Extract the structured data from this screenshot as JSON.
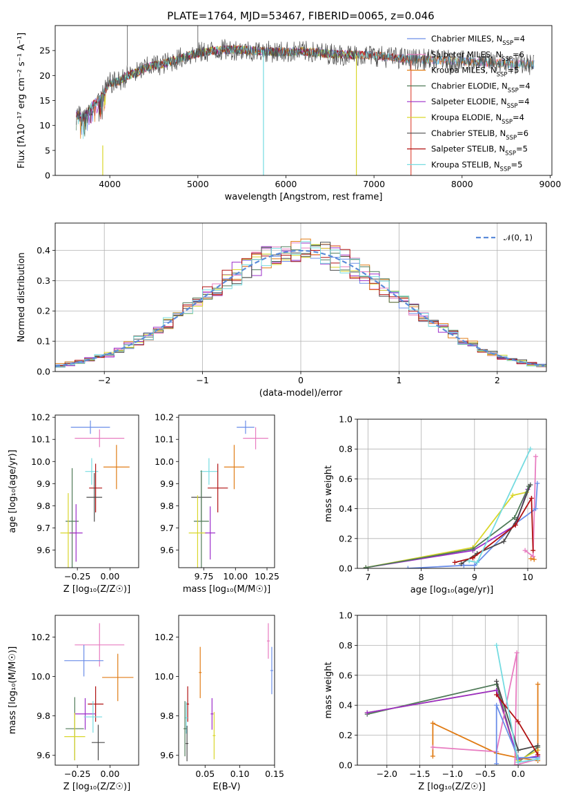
{
  "figure_title": "PLATE=1764, MJD=53467, FIBERID=0065, z=0.046",
  "colors": {
    "Chabrier MILES": "#6a8de8",
    "Salpeter MILES": "#e87bc0",
    "Kroupa MILES": "#e07b14",
    "Chabrier ELODIE": "#4f7a58",
    "Salpeter ELODIE": "#9b2cc9",
    "Kroupa ELODIE": "#d9d629",
    "Chabrier STELIB": "#4a4a4a",
    "Salpeter STELIB": "#b01010",
    "Kroupa STELIB": "#74dbe0"
  },
  "legend": [
    {
      "label": "Chabrier MILES, N",
      "sub": "SSP",
      "value": "=4"
    },
    {
      "label": "Salpeter MILES, N",
      "sub": "SSP",
      "value": "=6"
    },
    {
      "label": "Kroupa MILES, N",
      "sub": "SSP",
      "value": "=5"
    },
    {
      "label": "Chabrier ELODIE, N",
      "sub": "SSP",
      "value": "=4"
    },
    {
      "label": "Salpeter ELODIE, N",
      "sub": "SSP",
      "value": "=4"
    },
    {
      "label": "Kroupa ELODIE, N",
      "sub": "SSP",
      "value": "=4"
    },
    {
      "label": "Chabrier STELIB, N",
      "sub": "SSP",
      "value": "=6"
    },
    {
      "label": "Salpeter STELIB, N",
      "sub": "SSP",
      "value": "=5"
    },
    {
      "label": "Kroupa STELIB, N",
      "sub": "SSP",
      "value": "=5"
    }
  ],
  "chart_data": [
    {
      "id": "spectrum",
      "type": "line",
      "xlabel": "wavelength [Angstrom, rest frame]",
      "ylabel": "Flux [fλ10⁻¹⁷ erg cm⁻² s⁻¹ A⁻¹]",
      "xlim": [
        3380,
        9020
      ],
      "ylim": [
        0,
        30
      ],
      "xticks": [
        "4000",
        "5000",
        "6000",
        "7000",
        "8000",
        "9000"
      ],
      "yticks": [
        "0",
        "5",
        "10",
        "15",
        "20",
        "25"
      ],
      "continuum": {
        "x": [
          3600,
          3700,
          3800,
          3900,
          4000,
          4100,
          4200,
          4300,
          4400,
          4500,
          4600,
          4700,
          4800,
          4900,
          5000,
          5200,
          5400,
          5600,
          5800,
          6000,
          6200,
          6400,
          6600,
          6800,
          7000,
          7200,
          7400,
          7600,
          7800,
          8000,
          8200,
          8400,
          8600,
          8800,
          9000
        ],
        "y": [
          12.5,
          11.5,
          14.0,
          15.5,
          18.5,
          18.8,
          20.0,
          20.5,
          21.5,
          22.0,
          22.3,
          22.8,
          23.5,
          24.0,
          24.5,
          25.0,
          25.2,
          25.0,
          24.8,
          24.7,
          24.8,
          24.5,
          24.2,
          24.1,
          24.0,
          23.6,
          23.3,
          23.2,
          23.0,
          22.8,
          22.7,
          22.5,
          22.3,
          22.2,
          22.0
        ]
      },
      "annotations": [
        "legend, upper right"
      ]
    },
    {
      "id": "residuals",
      "type": "area",
      "xlabel": "(data-model)/error",
      "ylabel": "Normed distribution",
      "xlim": [
        -2.5,
        2.5
      ],
      "ylim": [
        0,
        0.49
      ],
      "xticks": [
        "−2",
        "−1",
        "0",
        "1",
        "2"
      ],
      "yticks": [
        "0.0",
        "0.1",
        "0.2",
        "0.3",
        "0.4"
      ],
      "grid": true,
      "legend_placement": "upper right",
      "legend_label": "𝒩(0, 1)",
      "bin_width": 0.1
    },
    {
      "id": "age_vs_Z",
      "type": "scatter",
      "xlabel": "Z [log₁₀(Z/Z☉)]",
      "ylabel": "age  [log₁₀(age/yr)]",
      "xlim": [
        -0.42,
        0.22
      ],
      "ylim": [
        9.52,
        10.21
      ],
      "xticks": [
        "−0.25",
        "0.00"
      ],
      "yticks": [
        "9.6",
        "9.7",
        "9.8",
        "9.9",
        "10.0",
        "10.1",
        "10.2"
      ],
      "points": [
        {
          "s": "Chabrier MILES",
          "x": -0.15,
          "xerr": 0.15,
          "y": 10.155,
          "yerr": 0.03
        },
        {
          "s": "Salpeter MILES",
          "x": -0.08,
          "xerr": 0.19,
          "y": 10.105,
          "yerr": 0.04
        },
        {
          "s": "Kroupa MILES",
          "x": 0.05,
          "xerr": 0.1,
          "y": 9.975,
          "yerr": 0.1
        },
        {
          "s": "Kroupa STELIB",
          "x": -0.14,
          "xerr": 0.05,
          "y": 9.955,
          "yerr": 0.06
        },
        {
          "s": "Salpeter STELIB",
          "x": -0.11,
          "xerr": 0.05,
          "y": 9.88,
          "yerr": 0.11
        },
        {
          "s": "Chabrier STELIB",
          "x": -0.12,
          "xerr": 0.06,
          "y": 9.838,
          "yerr": 0.11
        },
        {
          "s": "Chabrier ELODIE",
          "x": -0.29,
          "xerr": 0.05,
          "y": 9.73,
          "yerr": 0.24
        },
        {
          "s": "Kroupa ELODIE",
          "x": -0.32,
          "xerr": 0.06,
          "y": 9.677,
          "yerr": 0.18
        },
        {
          "s": "Salpeter ELODIE",
          "x": -0.26,
          "xerr": 0.05,
          "y": 9.677,
          "yerr": 0.13
        }
      ]
    },
    {
      "id": "age_vs_mass",
      "type": "scatter",
      "xlabel": "mass [log₁₀(M/M☉)]",
      "ylabel": "",
      "xlim": [
        9.55,
        10.31
      ],
      "ylim": [
        9.52,
        10.21
      ],
      "xticks": [
        "9.75",
        "10.00",
        "10.25"
      ],
      "yticks": [
        "9.6",
        "9.7",
        "9.8",
        "9.9",
        "10.0",
        "10.1",
        "10.2"
      ],
      "points": [
        {
          "s": "Chabrier MILES",
          "x": 10.08,
          "xerr": 0.07,
          "y": 10.155,
          "yerr": 0.03
        },
        {
          "s": "Salpeter MILES",
          "x": 10.16,
          "xerr": 0.1,
          "y": 10.105,
          "yerr": 0.05
        },
        {
          "s": "Kroupa MILES",
          "x": 9.99,
          "xerr": 0.08,
          "y": 9.975,
          "yerr": 0.1
        },
        {
          "s": "Kroupa STELIB",
          "x": 9.79,
          "xerr": 0.07,
          "y": 9.955,
          "yerr": 0.06
        },
        {
          "s": "Salpeter STELIB",
          "x": 9.86,
          "xerr": 0.08,
          "y": 9.88,
          "yerr": 0.11
        },
        {
          "s": "Chabrier STELIB",
          "x": 9.73,
          "xerr": 0.08,
          "y": 9.838,
          "yerr": 0.11
        },
        {
          "s": "Chabrier ELODIE",
          "x": 9.73,
          "xerr": 0.06,
          "y": 9.73,
          "yerr": 0.23
        },
        {
          "s": "Kroupa ELODIE",
          "x": 9.7,
          "xerr": 0.07,
          "y": 9.677,
          "yerr": 0.17
        },
        {
          "s": "Salpeter ELODIE",
          "x": 9.8,
          "xerr": 0.04,
          "y": 9.677,
          "yerr": 0.12
        }
      ]
    },
    {
      "id": "weight_vs_age",
      "type": "line",
      "xlabel": "age  [log₁₀(age/yr)]",
      "ylabel": "mass weight",
      "xlim": [
        6.8,
        10.35
      ],
      "ylim": [
        0,
        1
      ],
      "xticks": [
        "7",
        "8",
        "9",
        "10"
      ],
      "yticks": [
        "0.0",
        "0.2",
        "0.4",
        "0.6",
        "0.8",
        "1.0"
      ],
      "grid": true,
      "series": [
        {
          "s": "Salpeter ELODIE",
          "x": [
            6.96,
            8.97,
            9.77,
            10.0
          ],
          "y": [
            0.005,
            0.12,
            0.29,
            0.53
          ]
        },
        {
          "s": "Kroupa ELODIE",
          "x": [
            6.96,
            8.97,
            9.72,
            9.98
          ],
          "y": [
            0.005,
            0.14,
            0.49,
            0.51
          ]
        },
        {
          "s": "Chabrier ELODIE",
          "x": [
            6.96,
            8.97,
            9.75,
            10.02
          ],
          "y": [
            0.005,
            0.13,
            0.34,
            0.55
          ]
        },
        {
          "s": "Salpeter MILES",
          "x": [
            9.95,
            10.1,
            10.15
          ],
          "y": [
            0.12,
            0.08,
            0.75
          ]
        },
        {
          "s": "Kroupa MILES",
          "x": [
            10.06,
            10.12
          ],
          "y": [
            0.065,
            0.06
          ]
        },
        {
          "s": "Chabrier MILES",
          "x": [
            7.75,
            8.8,
            9.0,
            9.77,
            10.15,
            10.18
          ],
          "y": [
            0.0,
            0.02,
            0.02,
            0.3,
            0.4,
            0.57
          ]
        },
        {
          "s": "Chabrier STELIB",
          "x": [
            8.75,
            9.05,
            9.55,
            9.8,
            10.05
          ],
          "y": [
            0.03,
            0.1,
            0.18,
            0.33,
            0.56
          ]
        },
        {
          "s": "Salpeter STELIB",
          "x": [
            8.63,
            8.97,
            9.77,
            10.07,
            10.1
          ],
          "y": [
            0.04,
            0.07,
            0.29,
            0.47,
            0.12
          ]
        },
        {
          "s": "Kroupa STELIB",
          "x": [
            8.9,
            9.05,
            10.05
          ],
          "y": [
            0.05,
            0.04,
            0.8
          ]
        }
      ]
    },
    {
      "id": "mass_vs_Z",
      "type": "scatter",
      "xlabel": "Z [log₁₀(Z/Z☉)]",
      "ylabel": "mass [log₁₀(M/M☉)]",
      "xlim": [
        -0.42,
        0.22
      ],
      "ylim": [
        9.55,
        10.31
      ],
      "xticks": [
        "−0.25",
        "0.00"
      ],
      "yticks": [
        "9.6",
        "9.8",
        "10.0",
        "10.2"
      ],
      "points": [
        {
          "s": "Salpeter MILES",
          "x": -0.08,
          "xerr": 0.19,
          "y": 10.16,
          "yerr": 0.11
        },
        {
          "s": "Chabrier MILES",
          "x": -0.2,
          "xerr": 0.15,
          "y": 10.08,
          "yerr": 0.08
        },
        {
          "s": "Kroupa MILES",
          "x": 0.06,
          "xerr": 0.12,
          "y": 9.995,
          "yerr": 0.12
        },
        {
          "s": "Salpeter STELIB",
          "x": -0.11,
          "xerr": 0.06,
          "y": 9.86,
          "yerr": 0.09
        },
        {
          "s": "Salpeter ELODIE",
          "x": -0.19,
          "xerr": 0.08,
          "y": 9.81,
          "yerr": 0.08
        },
        {
          "s": "Kroupa STELIB",
          "x": -0.13,
          "xerr": 0.07,
          "y": 9.795,
          "yerr": 0.08
        },
        {
          "s": "Chabrier ELODIE",
          "x": -0.27,
          "xerr": 0.07,
          "y": 9.735,
          "yerr": 0.16
        },
        {
          "s": "Kroupa ELODIE",
          "x": -0.27,
          "xerr": 0.08,
          "y": 9.695,
          "yerr": 0.12
        },
        {
          "s": "Chabrier STELIB",
          "x": -0.09,
          "xerr": 0.05,
          "y": 9.665,
          "yerr": 0.09
        }
      ]
    },
    {
      "id": "mass_vs_ebv",
      "type": "scatter",
      "xlabel": "E(B-V)",
      "ylabel": "",
      "xlim": [
        0.012,
        0.15
      ],
      "ylim": [
        9.55,
        10.31
      ],
      "xticks": [
        "0.05",
        "0.10",
        "0.15"
      ],
      "yticks": [
        "9.6",
        "9.8",
        "10.0",
        "10.2"
      ],
      "points": [
        {
          "s": "Salpeter MILES",
          "x": 0.141,
          "xerr": 0.0,
          "y": 10.18,
          "yerr": 0.09
        },
        {
          "s": "Chabrier MILES",
          "x": 0.146,
          "xerr": 0.0,
          "y": 10.03,
          "yerr": 0.12
        },
        {
          "s": "Kroupa MILES",
          "x": 0.043,
          "xerr": 0.0,
          "y": 10.02,
          "yerr": 0.13
        },
        {
          "s": "Salpeter STELIB",
          "x": 0.025,
          "xerr": 0.0,
          "y": 9.86,
          "yerr": 0.09
        },
        {
          "s": "Salpeter ELODIE",
          "x": 0.06,
          "xerr": 0.0,
          "y": 9.81,
          "yerr": 0.08
        },
        {
          "s": "Kroupa STELIB",
          "x": 0.023,
          "xerr": 0.0,
          "y": 9.79,
          "yerr": 0.08
        },
        {
          "s": "Chabrier ELODIE",
          "x": 0.021,
          "xerr": 0.0,
          "y": 9.735,
          "yerr": 0.14
        },
        {
          "s": "Kroupa ELODIE",
          "x": 0.063,
          "xerr": 0.0,
          "y": 9.7,
          "yerr": 0.12
        },
        {
          "s": "Chabrier STELIB",
          "x": 0.024,
          "xerr": 0.0,
          "y": 9.66,
          "yerr": 0.09
        }
      ]
    },
    {
      "id": "weight_vs_Z",
      "type": "line",
      "xlabel": "Z [log₁₀(Z/Z☉)]",
      "ylabel": "mass weight",
      "xlim": [
        -2.45,
        0.43
      ],
      "ylim": [
        0,
        1
      ],
      "xticks": [
        "−2.0",
        "−1.5",
        "−1.0",
        "−0.5",
        "0.0"
      ],
      "yticks": [
        "0.0",
        "0.2",
        "0.4",
        "0.6",
        "0.8",
        "1.0"
      ],
      "grid": true,
      "series": [
        {
          "s": "Chabrier ELODIE",
          "x": [
            -2.3,
            -0.33,
            0.0,
            0.3
          ],
          "y": [
            0.34,
            0.54,
            0.02,
            0.12
          ]
        },
        {
          "s": "Kroupa ELODIE",
          "x": [
            -2.3,
            -0.33,
            0.0,
            0.3
          ],
          "y": [
            0.35,
            0.5,
            0.03,
            0.1
          ]
        },
        {
          "s": "Salpeter ELODIE",
          "x": [
            -2.3,
            -0.33,
            0.0,
            0.3
          ],
          "y": [
            0.35,
            0.5,
            0.04,
            0.06
          ]
        },
        {
          "s": "Kroupa MILES",
          "x": [
            -1.3,
            -1.3,
            -0.33,
            0.0,
            0.3,
            0.3
          ],
          "y": [
            0.06,
            0.28,
            0.08,
            0.05,
            0.03,
            0.54
          ]
        },
        {
          "s": "Salpeter MILES",
          "x": [
            -1.3,
            -0.33,
            -0.02,
            -0.05,
            0.3
          ],
          "y": [
            0.12,
            0.09,
            0.75,
            0.0,
            0.04
          ]
        },
        {
          "s": "Chabrier MILES",
          "x": [
            -0.33,
            -0.33,
            0.0,
            0.3
          ],
          "y": [
            0.01,
            0.4,
            0.05,
            0.05
          ]
        },
        {
          "s": "Chabrier STELIB",
          "x": [
            -0.33,
            0.0,
            0.3
          ],
          "y": [
            0.56,
            0.1,
            0.13
          ]
        },
        {
          "s": "Salpeter STELIB",
          "x": [
            -0.33,
            0.0,
            0.3
          ],
          "y": [
            0.47,
            0.29,
            0.07
          ]
        },
        {
          "s": "Kroupa STELIB",
          "x": [
            -0.33,
            0.0,
            0.3
          ],
          "y": [
            0.8,
            0.02,
            0.04
          ]
        }
      ]
    }
  ]
}
